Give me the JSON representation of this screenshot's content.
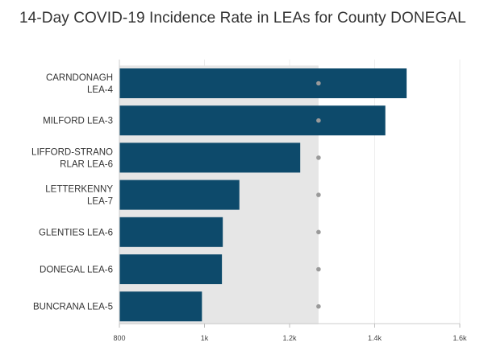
{
  "title": "14-Day COVID-19 Incidence Rate in LEAs for County DONEGAL",
  "chart_data": {
    "type": "bar",
    "orientation": "horizontal",
    "title": "14-Day COVID-19 Incidence Rate in LEAs for County DONEGAL",
    "xlabel": "",
    "ylabel": "",
    "categories": [
      [
        "CARNDONAGH",
        "LEA-4"
      ],
      [
        "MILFORD LEA-3"
      ],
      [
        "LIFFORD-STRANO",
        "RLAR LEA-6"
      ],
      [
        "LETTERKENNY",
        "LEA-7"
      ],
      [
        "GLENTIES LEA-6"
      ],
      [
        "DONEGAL LEA-6"
      ],
      [
        "BUNCRANA LEA-5"
      ]
    ],
    "values": [
      1475,
      1425,
      1225,
      1082,
      1043,
      1041,
      994
    ],
    "reference_value": 1268,
    "xlim": [
      800,
      1600
    ],
    "xticks": [
      800,
      1000,
      1200,
      1400,
      1600
    ],
    "xtick_labels": [
      "800",
      "1k",
      "1.2k",
      "1.4k",
      "1.6k"
    ],
    "grid": true,
    "legend": "none",
    "colors": {
      "bar": "#0d4a6b",
      "reference_band": "#e6e6e6",
      "reference_dot": "#9a9a9a",
      "axis": "#cccccc",
      "title": "#333333"
    }
  }
}
